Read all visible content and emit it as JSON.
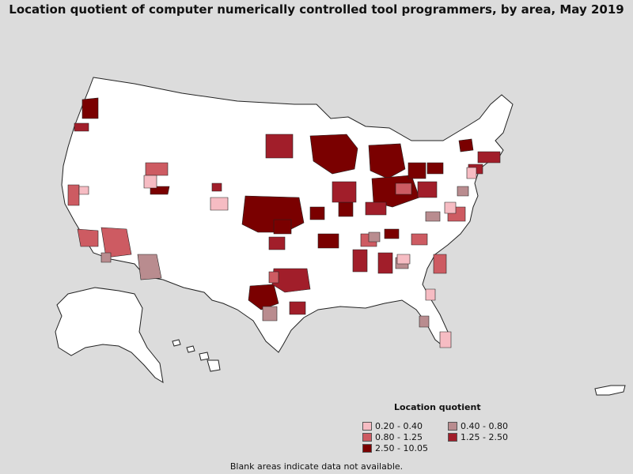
{
  "title": "Location quotient of computer numerically controlled tool programmers, by area, May 2019",
  "legend": {
    "title": "Location quotient",
    "items": [
      {
        "label": "0.20 - 0.40",
        "color": "#f6bcc3"
      },
      {
        "label": "0.40 - 0.80",
        "color": "#b98c8f"
      },
      {
        "label": "0.80 - 1.25",
        "color": "#cd5b62"
      },
      {
        "label": "1.25 - 2.50",
        "color": "#a11e2a"
      },
      {
        "label": "2.50 - 10.05",
        "color": "#7a0000"
      }
    ]
  },
  "footnote": "Blank areas indicate data not available.",
  "colors": {
    "background": "#dcdcdc",
    "no_data": "#ffffff",
    "border": "#222222"
  }
}
